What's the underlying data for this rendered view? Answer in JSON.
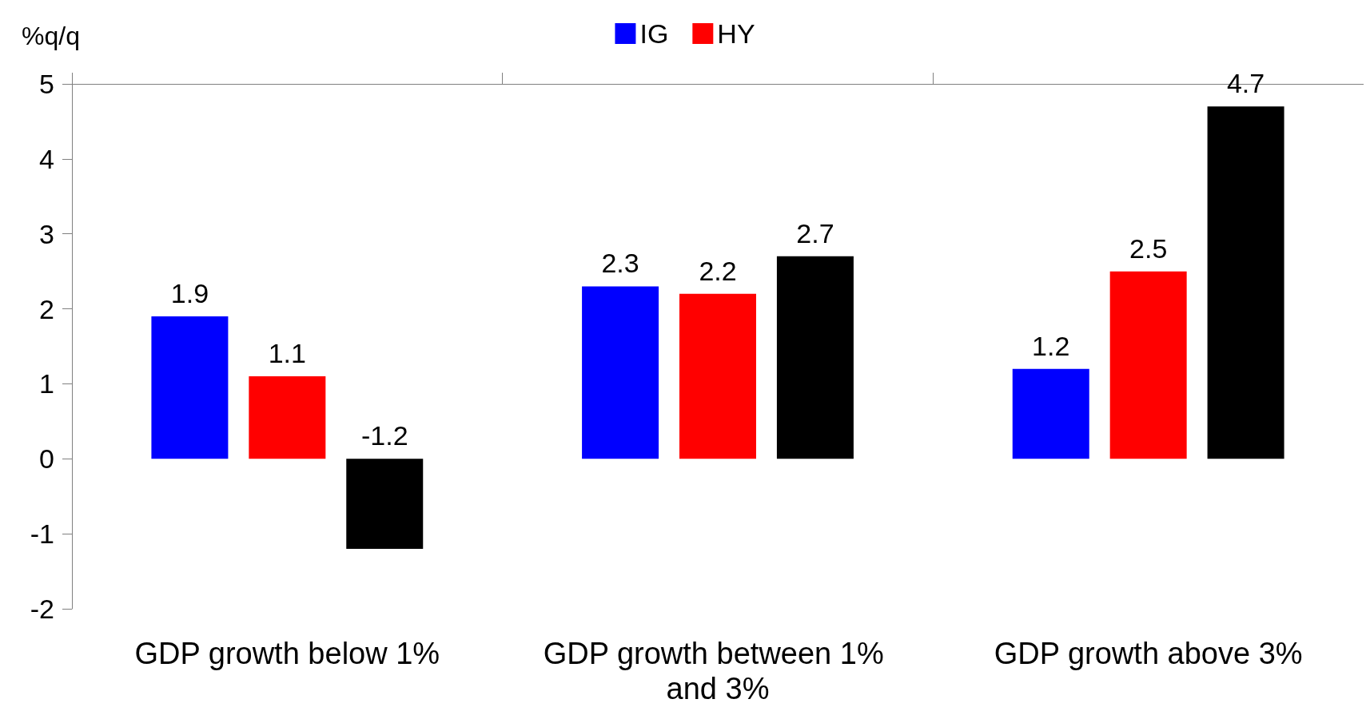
{
  "chart_data": {
    "type": "bar",
    "ylabel": "%q/q",
    "categories": [
      "GDP growth below 1%",
      "GDP growth between 1% and 3%",
      "GDP growth above 3%"
    ],
    "series": [
      {
        "name": "IG",
        "color": "#0000ff",
        "values": [
          1.9,
          2.3,
          1.2
        ]
      },
      {
        "name": "HY",
        "color": "#ff0000",
        "values": [
          1.1,
          2.2,
          2.5
        ]
      },
      {
        "color": "#000000",
        "values": [
          -1.2,
          2.7,
          4.7
        ]
      }
    ],
    "ylim": [
      -2,
      5
    ],
    "yticks": [
      -2,
      -1,
      0,
      1,
      2,
      3,
      4,
      5
    ],
    "grid": false,
    "legend": "top",
    "data_labels": true
  }
}
